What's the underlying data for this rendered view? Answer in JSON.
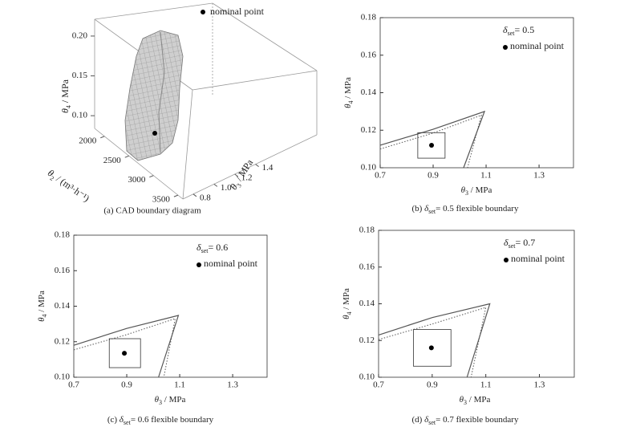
{
  "chart_data": [
    {
      "type": "surface3d",
      "legend_label": "nominal point",
      "zlabel": {
        "symbol": "θ",
        "sub": "4",
        "suffix": " / MPa"
      },
      "xlabel": {
        "symbol": "θ",
        "sub": "2",
        "suffix": " / (m³·h⁻¹)"
      },
      "ylabel": {
        "symbol": "θ",
        "sub": "3",
        "suffix": " / MPa"
      },
      "zlim": [
        0.08,
        0.21
      ],
      "zticks": [
        {
          "value": 0.1,
          "label": "0.10"
        },
        0.15,
        {
          "value": 0.2,
          "label": "0.20"
        }
      ],
      "xlim": [
        1800,
        3600
      ],
      "xticks": [
        2000,
        2500,
        3000,
        3500
      ],
      "ylim": [
        0.7,
        1.5
      ],
      "yticks": [
        0.8,
        {
          "value": 1.0,
          "label": "1.0"
        },
        1.2,
        1.4
      ],
      "caption": "(a) CAD boundary diagram"
    },
    {
      "type": "line",
      "xlim": [
        0.7,
        1.43
      ],
      "ylim": [
        0.1,
        0.18
      ],
      "xticks": [
        0.7,
        0.9,
        1.1,
        1.3
      ],
      "yticks": [
        {
          "value": 0.1,
          "label": "0.10"
        },
        0.12,
        0.14,
        0.16,
        0.18
      ],
      "xlabel": {
        "symbol": "θ",
        "sub": "3",
        "suffix": " / MPa"
      },
      "ylabel": {
        "symbol": "θ",
        "sub": "4",
        "suffix": " / MPa"
      },
      "annotation": {
        "symbol": "δ",
        "sub": "set",
        "suffix": "= 0.5"
      },
      "legend_label": "nominal point",
      "series": [
        {
          "line_style": "solid",
          "color": "#555555",
          "x": [
            0.7,
            0.9,
            1.094,
            1.015
          ],
          "values": [
            0.112,
            0.1205,
            0.13,
            0.1
          ]
        },
        {
          "line_style": "dotted",
          "color": "#555555",
          "x": [
            0.7,
            0.9,
            1.082,
            1.03
          ],
          "values": [
            0.11,
            0.1185,
            0.128,
            0.1
          ]
        }
      ],
      "box": {
        "x": [
          0.842,
          0.945
        ],
        "y": [
          0.1051,
          0.1187
        ]
      },
      "nominal_point": {
        "x": 0.894,
        "y": 0.112
      },
      "caption": {
        "prefix": "(b) ",
        "symbol": "δ",
        "sub": "set",
        "suffix": "= 0.5 flexible boundary"
      }
    },
    {
      "type": "line",
      "xlim": [
        0.7,
        1.43
      ],
      "ylim": [
        0.1,
        0.18
      ],
      "xticks": [
        0.7,
        0.9,
        1.1,
        1.3
      ],
      "yticks": [
        {
          "value": 0.1,
          "label": "0.10"
        },
        0.12,
        0.14,
        0.16,
        0.18
      ],
      "xlabel": {
        "symbol": "θ",
        "sub": "3",
        "suffix": " / MPa"
      },
      "ylabel": {
        "symbol": "θ",
        "sub": "4",
        "suffix": " / MPa"
      },
      "annotation": {
        "symbol": "δ",
        "sub": "set",
        "suffix": "= 0.6"
      },
      "legend_label": "nominal point",
      "series": [
        {
          "line_style": "solid",
          "color": "#555555",
          "x": [
            0.7,
            0.9,
            1.095,
            1.02
          ],
          "values": [
            0.118,
            0.1275,
            0.1348,
            0.1
          ]
        },
        {
          "line_style": "dotted",
          "color": "#555555",
          "x": [
            0.7,
            0.9,
            1.083,
            1.04
          ],
          "values": [
            0.1154,
            0.124,
            0.133,
            0.1
          ]
        }
      ],
      "box": {
        "x": [
          0.834,
          0.952
        ],
        "y": [
          0.1054,
          0.1217
        ]
      },
      "nominal_point": {
        "x": 0.891,
        "y": 0.1135
      },
      "caption": {
        "prefix": "(c) ",
        "symbol": "δ",
        "sub": "set",
        "suffix": "= 0.6 flexible boundary"
      }
    },
    {
      "type": "line",
      "xlim": [
        0.7,
        1.43
      ],
      "ylim": [
        0.1,
        0.18
      ],
      "xticks": [
        0.7,
        0.9,
        1.1,
        1.3
      ],
      "yticks": [
        {
          "value": 0.1,
          "label": "0.10"
        },
        0.12,
        0.14,
        0.16,
        0.18
      ],
      "xlabel": {
        "symbol": "θ",
        "sub": "3",
        "suffix": " / MPa"
      },
      "ylabel": {
        "symbol": "θ",
        "sub": "4",
        "suffix": " / MPa"
      },
      "annotation": {
        "symbol": "δ",
        "sub": "set",
        "suffix": "= 0.7"
      },
      "legend_label": "nominal point",
      "series": [
        {
          "line_style": "solid",
          "color": "#555555",
          "x": [
            0.7,
            0.9,
            1.115,
            1.03
          ],
          "values": [
            0.123,
            0.1325,
            0.14,
            0.1
          ]
        },
        {
          "line_style": "dotted",
          "color": "#555555",
          "x": [
            0.7,
            0.9,
            1.1,
            1.045
          ],
          "values": [
            0.1205,
            0.129,
            0.138,
            0.1
          ]
        }
      ],
      "box": {
        "x": [
          0.83,
          0.97
        ],
        "y": [
          0.106,
          0.126
        ]
      },
      "nominal_point": {
        "x": 0.897,
        "y": 0.116
      },
      "caption": {
        "prefix": "(d) ",
        "symbol": "δ",
        "sub": "set",
        "suffix": "= 0.7 flexible boundary"
      }
    }
  ]
}
